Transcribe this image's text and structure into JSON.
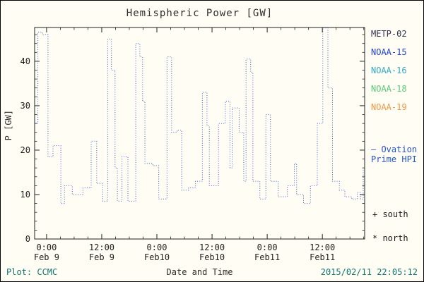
{
  "title": "Hemispheric Power [GW]",
  "ylabel": "P [GW]",
  "footer": {
    "plot_credit": "Plot: CCMC",
    "xlabel": "Date and Time",
    "timestamp": "2015/02/11 22:05:12"
  },
  "legend": {
    "satellites": [
      {
        "label": "METP-02",
        "color": "#333355"
      },
      {
        "label": "NOAA-15",
        "color": "#2244cc"
      },
      {
        "label": "NOAA-16",
        "color": "#33aacc"
      },
      {
        "label": "NOAA-18",
        "color": "#55cc77"
      },
      {
        "label": "NOAA-19",
        "color": "#ee9944"
      }
    ],
    "ovation": {
      "lines": [
        "– Ovation",
        "Prime HPI"
      ],
      "color": "#2255cc"
    },
    "markers": [
      {
        "label": "+ south"
      },
      {
        "label": "* north"
      }
    ]
  },
  "chart_data": {
    "type": "line",
    "subtype": "step",
    "line_style": "dotted",
    "series_name": "Ovation Prime HPI",
    "series_color": "#3a5fcd",
    "title": "Hemispheric Power [GW]",
    "xlabel": "Date and Time",
    "ylabel": "P [GW]",
    "x_unit": "hours from 2015-02-09 00:00 UT",
    "xlim": [
      -2.6,
      69.2
    ],
    "ylim": [
      0,
      47.6
    ],
    "grid": false,
    "y_ticks": [
      0,
      10,
      20,
      30,
      40
    ],
    "x_ticks": [
      {
        "hour": 0,
        "line1": "0:00",
        "line2": "Feb 9"
      },
      {
        "hour": 12,
        "line1": "12:00",
        "line2": "Feb 9"
      },
      {
        "hour": 24,
        "line1": "0:00",
        "line2": "Feb10"
      },
      {
        "hour": 36,
        "line1": "12:00",
        "line2": "Feb10"
      },
      {
        "hour": 48,
        "line1": "0:00",
        "line2": "Feb11"
      },
      {
        "hour": 60,
        "line1": "12:00",
        "line2": "Feb11"
      }
    ],
    "points": [
      [
        -2.6,
        26
      ],
      [
        -1.9,
        46.5
      ],
      [
        -0.9,
        46
      ],
      [
        0.3,
        18.5
      ],
      [
        1.4,
        21
      ],
      [
        3.1,
        8
      ],
      [
        3.9,
        12
      ],
      [
        5.6,
        10
      ],
      [
        7.9,
        11.5
      ],
      [
        9.7,
        22
      ],
      [
        10.9,
        12.5
      ],
      [
        12.2,
        8.5
      ],
      [
        13.3,
        45
      ],
      [
        14.1,
        38
      ],
      [
        14.9,
        16
      ],
      [
        15.4,
        8.5
      ],
      [
        16.4,
        18.5
      ],
      [
        17.7,
        8.5
      ],
      [
        19.4,
        44
      ],
      [
        20.3,
        41
      ],
      [
        20.9,
        31
      ],
      [
        21.4,
        17
      ],
      [
        23.1,
        16.5
      ],
      [
        24.4,
        9
      ],
      [
        26.2,
        41
      ],
      [
        27.2,
        24
      ],
      [
        28.4,
        24.5
      ],
      [
        29.4,
        11
      ],
      [
        30.9,
        11.5
      ],
      [
        32.4,
        13
      ],
      [
        33.9,
        33
      ],
      [
        34.9,
        25.5
      ],
      [
        35.4,
        12
      ],
      [
        37.4,
        26
      ],
      [
        38.9,
        31
      ],
      [
        39.9,
        16
      ],
      [
        40.4,
        29.5
      ],
      [
        41.9,
        24
      ],
      [
        42.9,
        13
      ],
      [
        43.4,
        40.5
      ],
      [
        44.4,
        37.5
      ],
      [
        44.9,
        13
      ],
      [
        46.4,
        9
      ],
      [
        47.7,
        28
      ],
      [
        48.7,
        13
      ],
      [
        50.4,
        9.5
      ],
      [
        52.4,
        12
      ],
      [
        53.9,
        17
      ],
      [
        54.4,
        10
      ],
      [
        55.9,
        8
      ],
      [
        57.4,
        12
      ],
      [
        58.9,
        26
      ],
      [
        60.1,
        47.5
      ],
      [
        61.2,
        34
      ],
      [
        62.2,
        13
      ],
      [
        63.7,
        11
      ],
      [
        64.9,
        9.5
      ],
      [
        66.4,
        9
      ],
      [
        67.6,
        10.5
      ],
      [
        68.3,
        9
      ],
      [
        68.9,
        15.5
      ]
    ]
  }
}
